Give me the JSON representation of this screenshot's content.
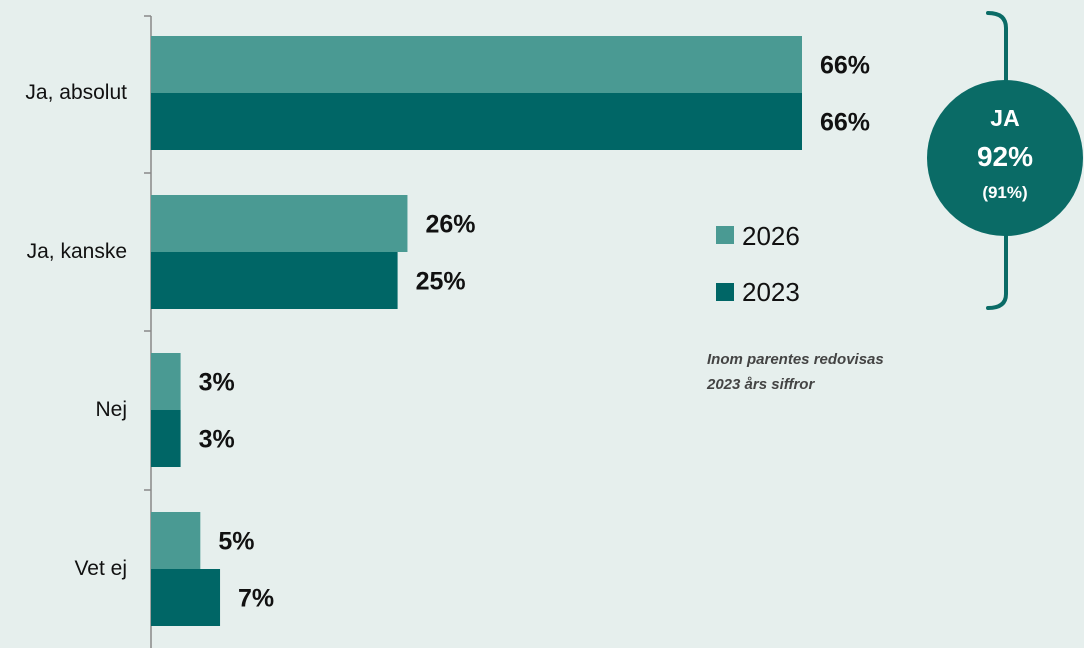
{
  "chart_data": {
    "type": "bar",
    "orientation": "horizontal",
    "categories": [
      "Ja, absolut",
      "Ja, kanske",
      "Nej",
      "Vet ej"
    ],
    "series": [
      {
        "name": "2026",
        "values": [
          66,
          26,
          3,
          5
        ],
        "labels": [
          "66%",
          "26%",
          "3%",
          "5%"
        ],
        "color": "#4a9a93"
      },
      {
        "name": "2023",
        "values": [
          66,
          25,
          3,
          7
        ],
        "labels": [
          "66%",
          "25%",
          "3%",
          "7%"
        ],
        "color": "#006666"
      }
    ],
    "xlim": [
      0,
      66
    ],
    "grid": false,
    "legend_position": "right"
  },
  "summary": {
    "title": "JA",
    "value": "92%",
    "previous": "(91%)",
    "color": "#0a6b66"
  },
  "note": {
    "line1": "Inom parentes redovisas",
    "line2": "2023 års siffror"
  },
  "colors": {
    "background": "#e6efed",
    "bracket": "#0a6b66",
    "axis": "#888888"
  }
}
